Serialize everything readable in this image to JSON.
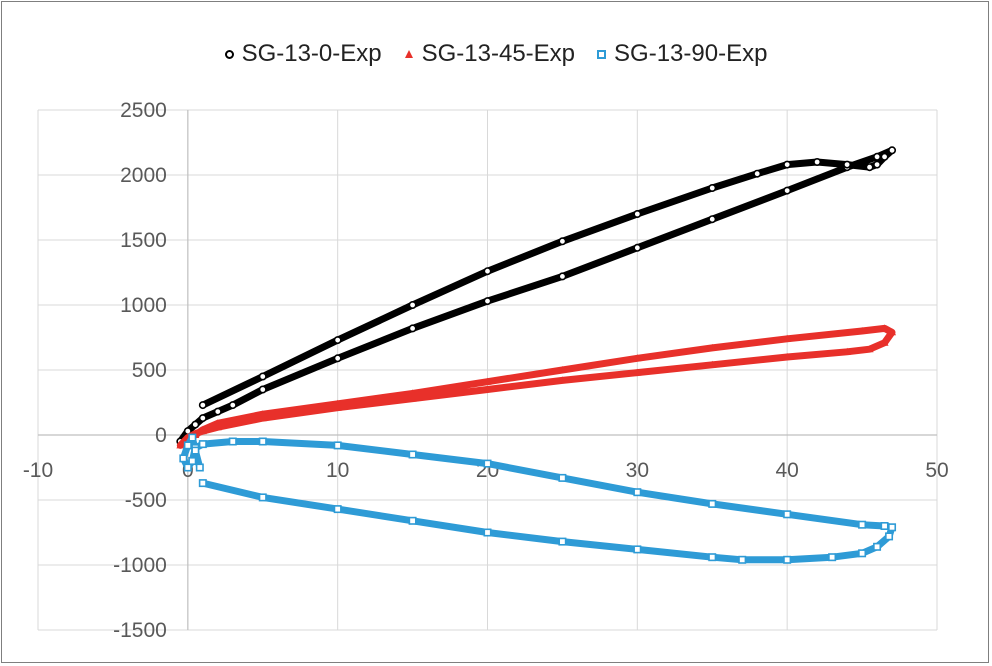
{
  "chart_data": {
    "type": "scatter",
    "title": "",
    "xlabel": "",
    "ylabel": "",
    "xlim": [
      -10,
      50
    ],
    "ylim": [
      -1500,
      2500
    ],
    "x_ticks": [
      -10,
      0,
      10,
      20,
      30,
      40,
      50
    ],
    "y_ticks": [
      -1500,
      -1000,
      -500,
      0,
      500,
      1000,
      1500,
      2000,
      2500
    ],
    "grid": true,
    "legend_position": "top",
    "series": [
      {
        "name": "SG-13-0-Exp",
        "color": "#000000",
        "marker": "circle",
        "points": [
          [
            -0.5,
            -50
          ],
          [
            0,
            30
          ],
          [
            0.5,
            80
          ],
          [
            1,
            130
          ],
          [
            2,
            180
          ],
          [
            3,
            230
          ],
          [
            5,
            350
          ],
          [
            10,
            590
          ],
          [
            15,
            820
          ],
          [
            20,
            1030
          ],
          [
            25,
            1220
          ],
          [
            30,
            1440
          ],
          [
            35,
            1660
          ],
          [
            40,
            1880
          ],
          [
            44,
            2060
          ],
          [
            46,
            2140
          ],
          [
            47,
            2190
          ],
          [
            46.5,
            2140
          ],
          [
            46,
            2080
          ],
          [
            45.5,
            2060
          ],
          [
            44,
            2080
          ],
          [
            42,
            2100
          ],
          [
            40,
            2080
          ],
          [
            38,
            2010
          ],
          [
            35,
            1900
          ],
          [
            30,
            1700
          ],
          [
            25,
            1490
          ],
          [
            20,
            1260
          ],
          [
            15,
            1000
          ],
          [
            10,
            730
          ],
          [
            5,
            450
          ],
          [
            1,
            230
          ]
        ]
      },
      {
        "name": "SG-13-45-Exp",
        "color": "#e8302a",
        "marker": "triangle",
        "points": [
          [
            -0.5,
            -80
          ],
          [
            0,
            -20
          ],
          [
            0.5,
            10
          ],
          [
            1,
            30
          ],
          [
            2,
            60
          ],
          [
            5,
            130
          ],
          [
            10,
            210
          ],
          [
            15,
            280
          ],
          [
            20,
            350
          ],
          [
            25,
            420
          ],
          [
            30,
            480
          ],
          [
            35,
            540
          ],
          [
            40,
            600
          ],
          [
            44,
            640
          ],
          [
            45.5,
            660
          ],
          [
            46.5,
            710
          ],
          [
            47,
            790
          ],
          [
            46.5,
            820
          ],
          [
            45,
            800
          ],
          [
            40,
            740
          ],
          [
            35,
            670
          ],
          [
            30,
            590
          ],
          [
            25,
            500
          ],
          [
            20,
            410
          ],
          [
            15,
            320
          ],
          [
            10,
            240
          ],
          [
            5,
            160
          ],
          [
            2,
            90
          ],
          [
            1,
            40
          ],
          [
            0.5,
            0
          ]
        ]
      },
      {
        "name": "SG-13-90-Exp",
        "color": "#2e9bd6",
        "marker": "square",
        "points": [
          [
            1,
            -370
          ],
          [
            5,
            -480
          ],
          [
            10,
            -570
          ],
          [
            15,
            -660
          ],
          [
            20,
            -750
          ],
          [
            25,
            -820
          ],
          [
            30,
            -880
          ],
          [
            35,
            -940
          ],
          [
            37,
            -960
          ],
          [
            40,
            -960
          ],
          [
            43,
            -940
          ],
          [
            45,
            -910
          ],
          [
            46,
            -860
          ],
          [
            46.8,
            -780
          ],
          [
            47,
            -710
          ],
          [
            46.5,
            -700
          ],
          [
            45,
            -690
          ],
          [
            40,
            -610
          ],
          [
            35,
            -530
          ],
          [
            30,
            -440
          ],
          [
            25,
            -330
          ],
          [
            20,
            -220
          ],
          [
            15,
            -150
          ],
          [
            10,
            -80
          ],
          [
            5,
            -50
          ],
          [
            3,
            -50
          ],
          [
            1,
            -70
          ],
          [
            0.5,
            -100
          ],
          [
            0.3,
            -200
          ],
          [
            0,
            -250
          ],
          [
            -0.3,
            -180
          ],
          [
            0,
            -80
          ],
          [
            0.3,
            -20
          ],
          [
            0.5,
            -120
          ],
          [
            0.8,
            -250
          ]
        ]
      }
    ]
  }
}
